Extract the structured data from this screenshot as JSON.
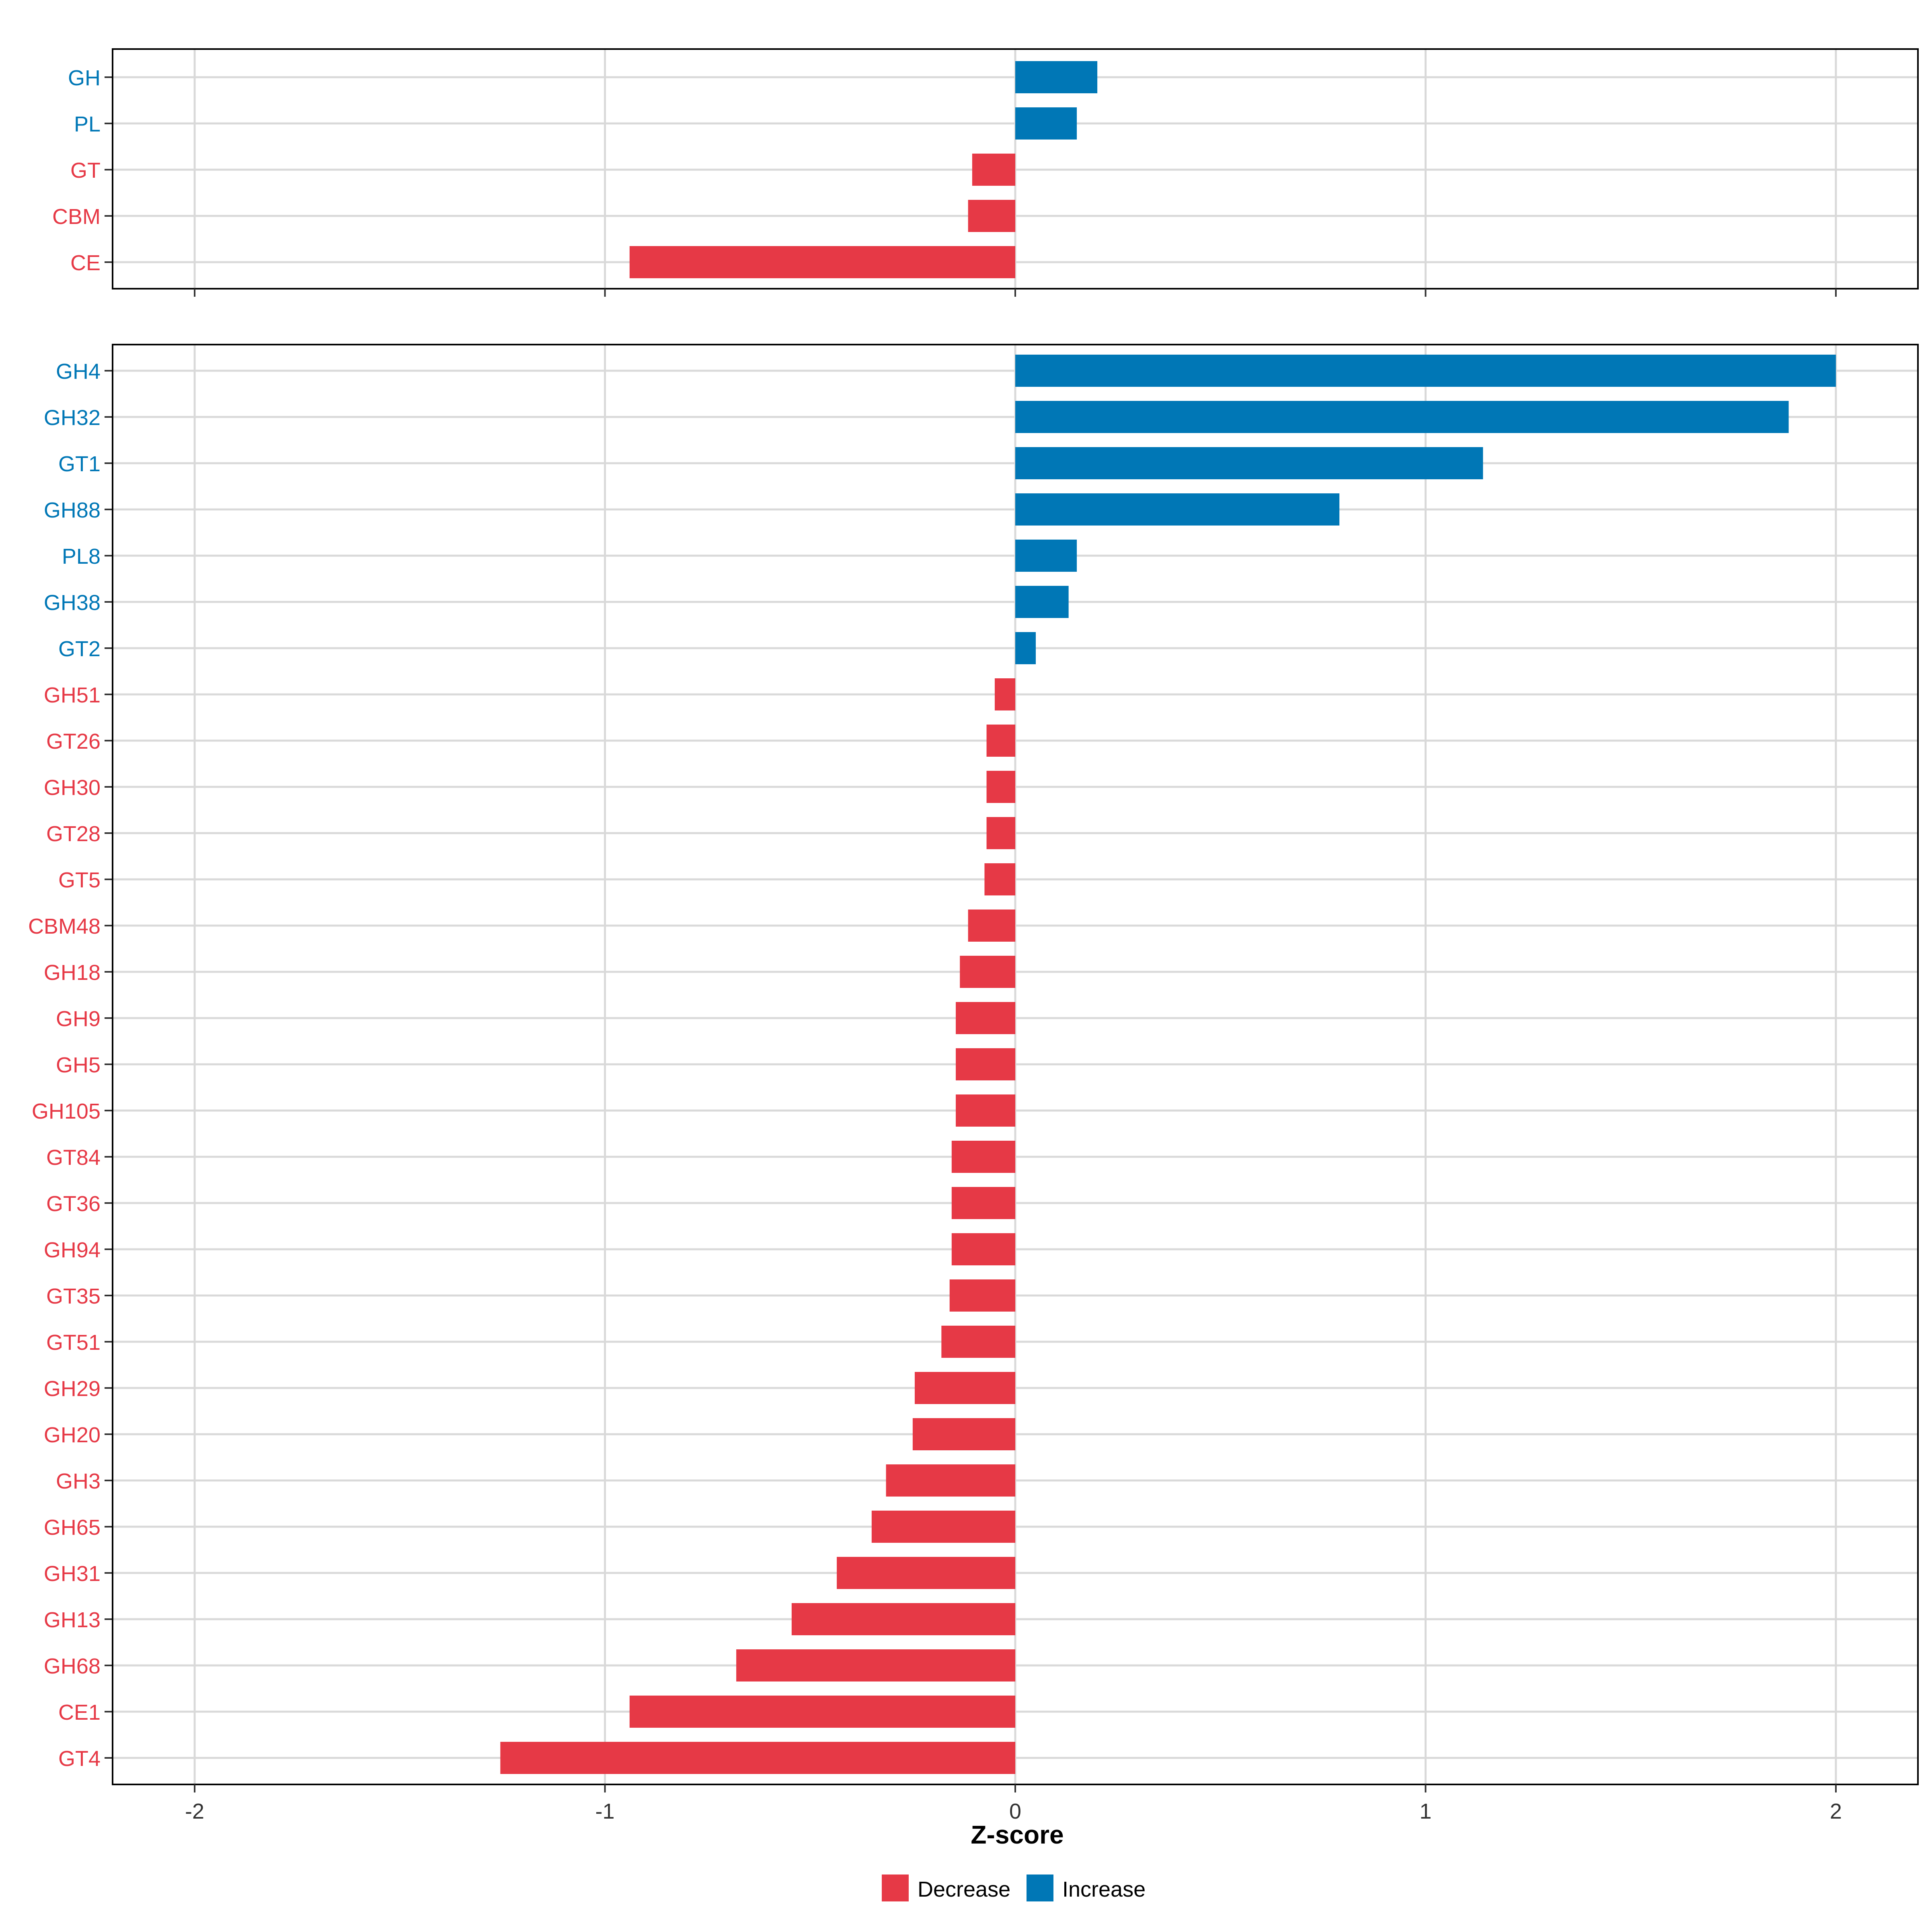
{
  "colors": {
    "decrease": "#E63946",
    "increase": "#0077B6",
    "grid": "#D9D9D9",
    "frame": "#000000"
  },
  "chart_data": [
    {
      "type": "bar",
      "orientation": "horizontal",
      "panel": "top",
      "categories": [
        "GH",
        "PL",
        "GT",
        "CBM",
        "CE"
      ],
      "values": [
        0.2,
        0.15,
        -0.105,
        -0.115,
        -0.94
      ],
      "xlim": [
        -2.2,
        2.2
      ],
      "xticks": [
        -2,
        -1,
        0,
        1,
        2
      ],
      "show_tick_labels": false
    },
    {
      "type": "bar",
      "orientation": "horizontal",
      "panel": "bottom",
      "categories": [
        "GH4",
        "GH32",
        "GT1",
        "GH88",
        "PL8",
        "GH38",
        "GT2",
        "GH51",
        "GT26",
        "GH30",
        "GT28",
        "GT5",
        "CBM48",
        "GH18",
        "GH9",
        "GH5",
        "GH105",
        "GT84",
        "GT36",
        "GH94",
        "GT35",
        "GT51",
        "GH29",
        "GH20",
        "GH3",
        "GH65",
        "GH31",
        "GH13",
        "GH68",
        "CE1",
        "GT4"
      ],
      "values": [
        2.0,
        1.885,
        1.14,
        0.79,
        0.15,
        0.13,
        0.05,
        -0.05,
        -0.07,
        -0.07,
        -0.07,
        -0.075,
        -0.115,
        -0.135,
        -0.145,
        -0.145,
        -0.145,
        -0.155,
        -0.155,
        -0.155,
        -0.16,
        -0.18,
        -0.245,
        -0.25,
        -0.315,
        -0.35,
        -0.435,
        -0.545,
        -0.68,
        -0.94,
        -1.255
      ],
      "xlim": [
        -2.2,
        2.2
      ],
      "xticks": [
        -2,
        -1,
        0,
        1,
        2
      ],
      "tick_labels": [
        "-2",
        "-1",
        "0",
        "1",
        "2"
      ],
      "xlabel": "Z-score"
    }
  ],
  "legend": {
    "items": [
      {
        "label": "Decrease",
        "key": "decrease"
      },
      {
        "label": "Increase",
        "key": "increase"
      }
    ]
  }
}
